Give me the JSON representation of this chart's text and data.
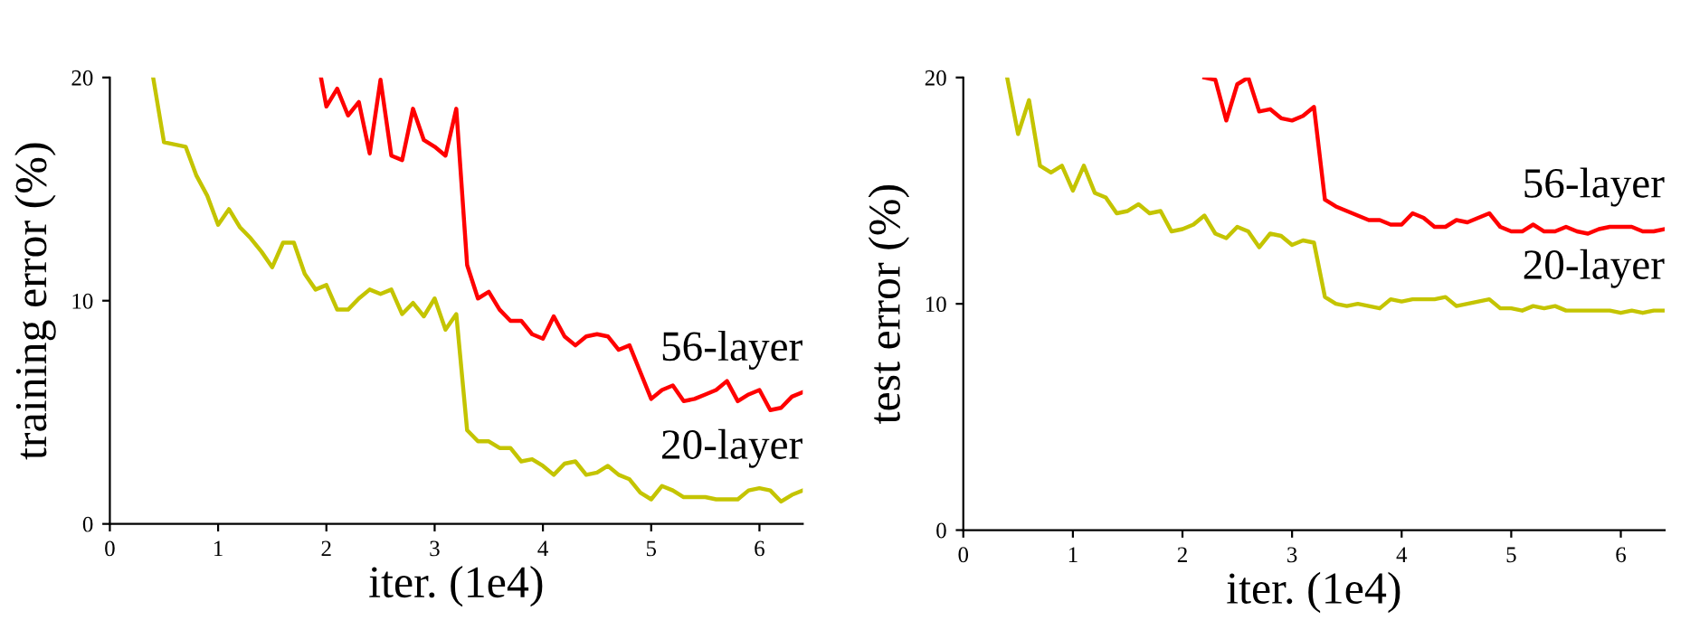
{
  "chart_data": [
    {
      "type": "line",
      "xlabel": "iter. (1e4)",
      "ylabel": "training error (%)",
      "xlim": [
        0,
        6.4
      ],
      "ylim": [
        0,
        20
      ],
      "xticks": [
        0,
        1,
        2,
        3,
        4,
        5,
        6
      ],
      "yticks": [
        0,
        10,
        20
      ],
      "grid": false,
      "legend": false,
      "series": [
        {
          "name": "56-layer",
          "color": "#ff0000",
          "x": [
            1.95,
            2.0,
            2.1,
            2.2,
            2.3,
            2.4,
            2.5,
            2.6,
            2.7,
            2.8,
            2.9,
            3.0,
            3.1,
            3.2,
            3.3,
            3.4,
            3.5,
            3.6,
            3.7,
            3.8,
            3.9,
            4.0,
            4.1,
            4.2,
            4.3,
            4.4,
            4.5,
            4.6,
            4.7,
            4.8,
            4.9,
            5.0,
            5.1,
            5.2,
            5.3,
            5.4,
            5.5,
            5.6,
            5.7,
            5.8,
            5.9,
            6.0,
            6.1,
            6.2,
            6.3,
            6.4
          ],
          "values": [
            20,
            18.7,
            19.5,
            18.3,
            18.9,
            16.6,
            19.9,
            16.5,
            16.3,
            18.6,
            17.2,
            16.9,
            16.5,
            18.6,
            11.6,
            10.1,
            10.4,
            9.6,
            9.1,
            9.1,
            8.5,
            8.3,
            9.3,
            8.4,
            8.0,
            8.4,
            8.5,
            8.4,
            7.8,
            8.0,
            6.8,
            5.6,
            6.0,
            6.2,
            5.5,
            5.6,
            5.8,
            6.0,
            6.4,
            5.5,
            5.8,
            6.0,
            5.1,
            5.2,
            5.7,
            5.9
          ]
        },
        {
          "name": "20-layer",
          "color": "#c4c400",
          "x": [
            0.4,
            0.5,
            0.6,
            0.7,
            0.8,
            0.9,
            1.0,
            1.1,
            1.2,
            1.3,
            1.4,
            1.5,
            1.6,
            1.7,
            1.8,
            1.9,
            2.0,
            2.1,
            2.2,
            2.3,
            2.4,
            2.5,
            2.6,
            2.7,
            2.8,
            2.9,
            3.0,
            3.1,
            3.2,
            3.3,
            3.4,
            3.5,
            3.6,
            3.7,
            3.8,
            3.9,
            4.0,
            4.1,
            4.2,
            4.3,
            4.4,
            4.5,
            4.6,
            4.7,
            4.8,
            4.9,
            5.0,
            5.1,
            5.2,
            5.3,
            5.4,
            5.5,
            5.6,
            5.7,
            5.8,
            5.9,
            6.0,
            6.1,
            6.2,
            6.3,
            6.4
          ],
          "values": [
            20,
            17.1,
            17.0,
            16.9,
            15.6,
            14.7,
            13.4,
            14.1,
            13.3,
            12.8,
            12.2,
            11.5,
            12.6,
            12.6,
            11.2,
            10.5,
            10.7,
            9.6,
            9.6,
            10.1,
            10.5,
            10.3,
            10.5,
            9.4,
            9.9,
            9.3,
            10.1,
            8.7,
            9.4,
            4.2,
            3.7,
            3.7,
            3.4,
            3.4,
            2.8,
            2.9,
            2.6,
            2.2,
            2.7,
            2.8,
            2.2,
            2.3,
            2.6,
            2.2,
            2.0,
            1.4,
            1.1,
            1.7,
            1.5,
            1.2,
            1.2,
            1.2,
            1.1,
            1.1,
            1.1,
            1.5,
            1.6,
            1.5,
            1.0,
            1.3,
            1.5
          ]
        }
      ]
    },
    {
      "type": "line",
      "xlabel": "iter. (1e4)",
      "ylabel": "test error (%)",
      "xlim": [
        0,
        6.4
      ],
      "ylim": [
        0,
        20
      ],
      "xticks": [
        0,
        1,
        2,
        3,
        4,
        5,
        6
      ],
      "yticks": [
        0,
        10,
        20
      ],
      "grid": false,
      "legend": false,
      "series": [
        {
          "name": "56-layer",
          "color": "#ff0000",
          "x": [
            2.2,
            2.3,
            2.4,
            2.5,
            2.6,
            2.7,
            2.8,
            2.9,
            3.0,
            3.1,
            3.2,
            3.3,
            3.4,
            3.5,
            3.6,
            3.7,
            3.8,
            3.9,
            4.0,
            4.1,
            4.2,
            4.3,
            4.4,
            4.5,
            4.6,
            4.7,
            4.8,
            4.9,
            5.0,
            5.1,
            5.2,
            5.3,
            5.4,
            5.5,
            5.6,
            5.7,
            5.8,
            5.9,
            6.0,
            6.1,
            6.2,
            6.3,
            6.4
          ],
          "values": [
            20,
            19.9,
            18.1,
            19.7,
            20.0,
            18.5,
            18.6,
            18.2,
            18.1,
            18.3,
            18.7,
            14.6,
            14.3,
            14.1,
            13.9,
            13.7,
            13.7,
            13.5,
            13.5,
            14.0,
            13.8,
            13.4,
            13.4,
            13.7,
            13.6,
            13.8,
            14.0,
            13.4,
            13.2,
            13.2,
            13.5,
            13.2,
            13.2,
            13.4,
            13.2,
            13.1,
            13.3,
            13.4,
            13.4,
            13.4,
            13.2,
            13.2,
            13.3
          ]
        },
        {
          "name": "20-layer",
          "color": "#c4c400",
          "x": [
            0.4,
            0.5,
            0.6,
            0.7,
            0.8,
            0.9,
            1.0,
            1.1,
            1.2,
            1.3,
            1.4,
            1.5,
            1.6,
            1.7,
            1.8,
            1.9,
            2.0,
            2.1,
            2.2,
            2.3,
            2.4,
            2.5,
            2.6,
            2.7,
            2.8,
            2.9,
            3.0,
            3.1,
            3.2,
            3.3,
            3.4,
            3.5,
            3.6,
            3.7,
            3.8,
            3.9,
            4.0,
            4.1,
            4.2,
            4.3,
            4.4,
            4.5,
            4.6,
            4.7,
            4.8,
            4.9,
            5.0,
            5.1,
            5.2,
            5.3,
            5.4,
            5.5,
            5.6,
            5.7,
            5.8,
            5.9,
            6.0,
            6.1,
            6.2,
            6.3,
            6.4
          ],
          "values": [
            20,
            17.5,
            19.0,
            16.1,
            15.8,
            16.1,
            15.0,
            16.1,
            14.9,
            14.7,
            14.0,
            14.1,
            14.4,
            14.0,
            14.1,
            13.2,
            13.3,
            13.5,
            13.9,
            13.1,
            12.9,
            13.4,
            13.2,
            12.5,
            13.1,
            13.0,
            12.6,
            12.8,
            12.7,
            10.3,
            10.0,
            9.9,
            10.0,
            9.9,
            9.8,
            10.2,
            10.1,
            10.2,
            10.2,
            10.2,
            10.3,
            9.9,
            10.0,
            10.1,
            10.2,
            9.8,
            9.8,
            9.7,
            9.9,
            9.8,
            9.9,
            9.7,
            9.7,
            9.7,
            9.7,
            9.7,
            9.6,
            9.7,
            9.6,
            9.7,
            9.7
          ]
        }
      ]
    }
  ]
}
